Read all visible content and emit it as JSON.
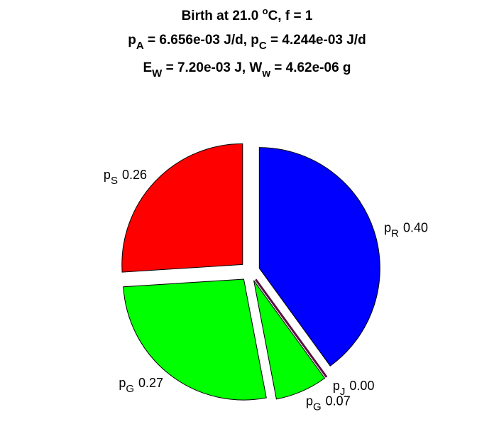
{
  "chart_data": {
    "type": "pie",
    "title": [
      [
        {
          "t": "Birth at 21.0 "
        },
        {
          "sup": "o"
        },
        {
          "t": "C, f = 1"
        }
      ],
      [
        {
          "t": "p"
        },
        {
          "sub": "A"
        },
        {
          "t": " = 6.656e-03 J/d, p"
        },
        {
          "sub": "C"
        },
        {
          "t": " = 4.244e-03 J/d"
        }
      ],
      [
        {
          "t": "E"
        },
        {
          "sub": "W"
        },
        {
          "t": " = 7.20e-03 J, W"
        },
        {
          "sub": "w"
        },
        {
          "t": " = 4.62e-06 g"
        }
      ]
    ],
    "categories": [
      {
        "base": "p",
        "sub": "R"
      },
      {
        "base": "p",
        "sub": "J"
      },
      {
        "base": "p",
        "sub": "G"
      },
      {
        "base": "p",
        "sub": "G"
      },
      {
        "base": "p",
        "sub": "S"
      }
    ],
    "values": [
      0.4,
      0.0,
      0.07,
      0.27,
      0.26
    ],
    "value_labels": [
      "0.40",
      "0.00",
      "0.07",
      "0.27",
      "0.26"
    ],
    "colors": [
      "#0000ff",
      "#5a1040",
      "#00ff00",
      "#00ff00",
      "#ff0000"
    ]
  }
}
